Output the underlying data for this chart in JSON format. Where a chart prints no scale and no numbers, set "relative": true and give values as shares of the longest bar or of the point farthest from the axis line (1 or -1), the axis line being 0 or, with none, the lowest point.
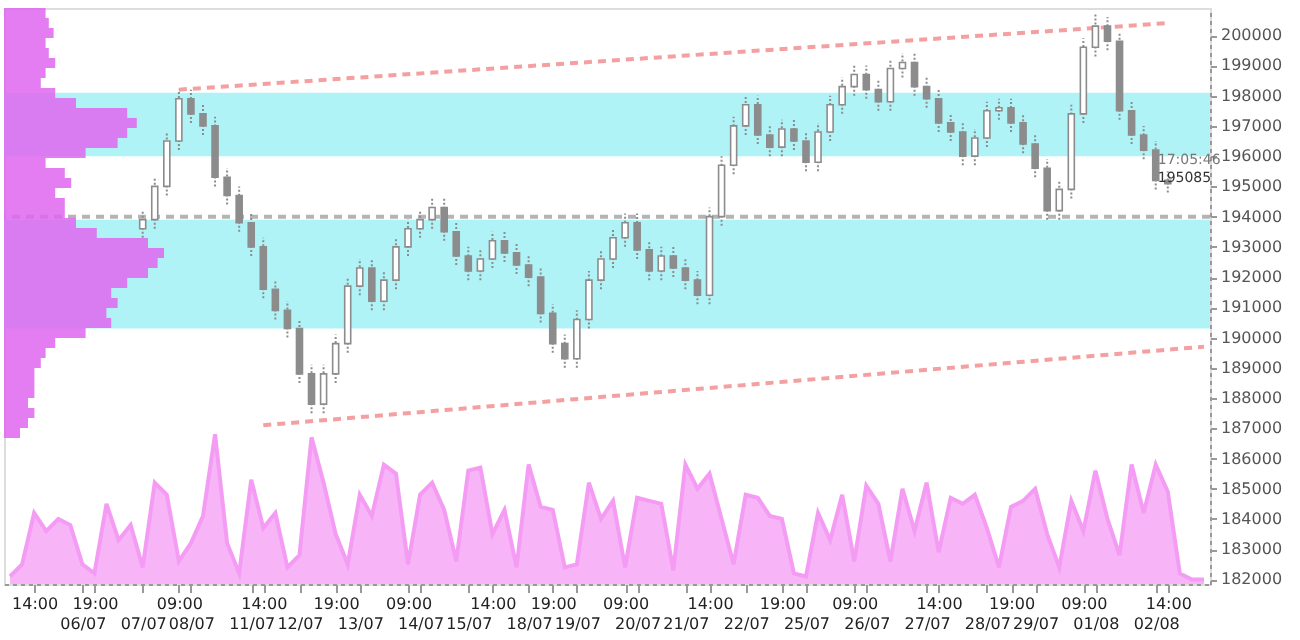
{
  "chart_data": [
    {
      "type": "candlestick",
      "categories": [
        null,
        null,
        "14:00",
        null,
        null,
        null,
        "06/07",
        "19:00",
        null,
        null,
        null,
        "07/07",
        null,
        null,
        "09:00",
        "08/07",
        null,
        null,
        null,
        null,
        "11/07",
        "14:00",
        null,
        null,
        "12/07",
        null,
        null,
        "19:00",
        null,
        "13/07",
        null,
        null,
        null,
        "09:00",
        "14/07",
        null,
        null,
        null,
        "15/07",
        null,
        "14:00",
        null,
        null,
        "18/07",
        null,
        "19:00",
        null,
        "19/07",
        null,
        null,
        null,
        "09:00",
        "20/07",
        null,
        null,
        null,
        "21/07",
        null,
        "14:00",
        null,
        null,
        "22/07",
        null,
        null,
        "19:00",
        null,
        "25/07",
        null,
        null,
        null,
        "09:00",
        "26/07",
        null,
        null,
        null,
        null,
        "27/07",
        "14:00",
        null,
        null,
        null,
        "28/07",
        null,
        "19:00",
        null,
        "29/07",
        null,
        null,
        null,
        "09:00",
        "01/08",
        null,
        null,
        null,
        null,
        "02/08",
        "14:00",
        null,
        null,
        null
      ],
      "ohlc": [
        null,
        null,
        null,
        null,
        null,
        null,
        null,
        null,
        null,
        null,
        null,
        [
          193600,
          194200,
          193300,
          193900
        ],
        [
          193900,
          195300,
          193600,
          195000
        ],
        [
          195000,
          196800,
          194700,
          196500
        ],
        [
          196500,
          198200,
          196200,
          197900
        ],
        [
          197900,
          198200,
          197100,
          197400
        ],
        [
          197400,
          197700,
          196700,
          197000
        ],
        [
          197000,
          197300,
          195000,
          195300
        ],
        [
          195300,
          195600,
          194400,
          194700
        ],
        [
          194700,
          195000,
          193500,
          193800
        ],
        [
          193800,
          194100,
          192700,
          193000
        ],
        [
          193000,
          193300,
          191300,
          191600
        ],
        [
          191600,
          191900,
          190600,
          190900
        ],
        [
          190900,
          191200,
          190000,
          190300
        ],
        [
          190300,
          190600,
          188500,
          188800
        ],
        [
          188800,
          189100,
          187500,
          187800
        ],
        [
          187800,
          189100,
          187500,
          188800
        ],
        [
          188800,
          190100,
          188500,
          189800
        ],
        [
          189800,
          192000,
          189500,
          191700
        ],
        [
          191700,
          192600,
          191400,
          192300
        ],
        [
          192300,
          192600,
          190900,
          191200
        ],
        [
          191200,
          192200,
          190900,
          191900
        ],
        [
          191900,
          193300,
          191600,
          193000
        ],
        [
          193000,
          193900,
          192700,
          193600
        ],
        [
          193600,
          194200,
          193300,
          193900
        ],
        [
          193900,
          194600,
          193600,
          194300
        ],
        [
          194300,
          194600,
          193200,
          193500
        ],
        [
          193500,
          193800,
          192400,
          192700
        ],
        [
          192700,
          193000,
          191900,
          192200
        ],
        [
          192200,
          192900,
          191900,
          192600
        ],
        [
          192600,
          193500,
          192300,
          193200
        ],
        [
          193200,
          193500,
          192500,
          192800
        ],
        [
          192800,
          193100,
          192100,
          192400
        ],
        [
          192400,
          192700,
          191700,
          192000
        ],
        [
          192000,
          192300,
          190500,
          190800
        ],
        [
          190800,
          191100,
          189500,
          189800
        ],
        [
          189800,
          190100,
          189000,
          189300
        ],
        [
          189300,
          190900,
          189000,
          190600
        ],
        [
          190600,
          192200,
          190300,
          191900
        ],
        [
          191900,
          192900,
          191600,
          192600
        ],
        [
          192600,
          193600,
          192300,
          193300
        ],
        [
          193300,
          194100,
          193000,
          193800
        ],
        [
          193800,
          194100,
          192600,
          192900
        ],
        [
          192900,
          193200,
          191900,
          192200
        ],
        [
          192200,
          193000,
          191900,
          192700
        ],
        [
          192700,
          193000,
          192000,
          192300
        ],
        [
          192300,
          192600,
          191600,
          191900
        ],
        [
          191900,
          192200,
          191100,
          191400
        ],
        [
          191400,
          194300,
          191100,
          194000
        ],
        [
          194000,
          196000,
          193700,
          195700
        ],
        [
          195700,
          197300,
          195400,
          197000
        ],
        [
          197000,
          198000,
          196700,
          197700
        ],
        [
          197700,
          198000,
          196400,
          196700
        ],
        [
          196700,
          197000,
          196000,
          196300
        ],
        [
          196300,
          197200,
          196000,
          196900
        ],
        [
          196900,
          197200,
          196200,
          196500
        ],
        [
          196500,
          196800,
          195500,
          195800
        ],
        [
          195800,
          197100,
          195500,
          196800
        ],
        [
          196800,
          198000,
          196500,
          197700
        ],
        [
          197700,
          198600,
          197400,
          198300
        ],
        [
          198300,
          199000,
          198000,
          198700
        ],
        [
          198700,
          199000,
          197900,
          198200
        ],
        [
          198200,
          198500,
          197500,
          197800
        ],
        [
          197800,
          199200,
          197500,
          198900
        ],
        [
          198900,
          199400,
          198600,
          199100
        ],
        [
          199100,
          199400,
          198000,
          198300
        ],
        [
          198300,
          198600,
          197600,
          197900
        ],
        [
          197900,
          198200,
          196800,
          197100
        ],
        [
          197100,
          197400,
          196500,
          196800
        ],
        [
          196800,
          197100,
          195700,
          196000
        ],
        [
          196000,
          196900,
          195700,
          196600
        ],
        [
          196600,
          197800,
          196300,
          197500
        ],
        [
          197500,
          197900,
          197200,
          197600
        ],
        [
          197600,
          197900,
          196800,
          197100
        ],
        [
          197100,
          197400,
          196100,
          196400
        ],
        [
          196400,
          196700,
          195300,
          195600
        ],
        [
          195600,
          195900,
          193900,
          194200
        ],
        [
          194200,
          195200,
          193900,
          194900
        ],
        [
          194900,
          197700,
          194600,
          197400
        ],
        [
          197400,
          199900,
          197100,
          199600
        ],
        [
          199600,
          200700,
          199300,
          200300
        ],
        [
          200300,
          200600,
          199500,
          199800
        ],
        [
          199800,
          200100,
          197200,
          197500
        ],
        [
          197500,
          197800,
          196400,
          196700
        ],
        [
          196700,
          197000,
          195900,
          196200
        ],
        [
          196200,
          196500,
          194900,
          195200
        ],
        [
          195200,
          195500,
          194800,
          195085
        ],
        null,
        null,
        null
      ],
      "color": "#8c8c8c",
      "series": [
        {
          "type": "area",
          "color": "#f49cf4",
          "values": [
            182100,
            182500,
            184200,
            183600,
            184000,
            183800,
            182500,
            182200,
            184500,
            183300,
            183800,
            182400,
            185200,
            184800,
            182600,
            183200,
            184100,
            186800,
            183200,
            182200,
            185300,
            183700,
            184200,
            182400,
            182800,
            186700,
            185200,
            183500,
            182500,
            184800,
            184100,
            185800,
            185500,
            182500,
            184800,
            185200,
            184300,
            182600,
            185600,
            185700,
            183500,
            184300,
            182400,
            185800,
            184400,
            184300,
            182400,
            182500,
            185200,
            184000,
            184600,
            182400,
            184700,
            184600,
            184500,
            182300,
            185800,
            185000,
            185500,
            184000,
            182500,
            184800,
            184700,
            184100,
            184000,
            182200,
            182100,
            184200,
            183300,
            184800,
            182600,
            185100,
            184500,
            182600,
            185000,
            183600,
            185200,
            182900,
            184700,
            184500,
            184800,
            183700,
            182400,
            184400,
            184600,
            185000,
            183500,
            182400,
            184600,
            183600,
            185600,
            184000,
            182800,
            185800,
            184200,
            185800,
            184900,
            182200,
            182000,
            182000
          ]
        },
        {
          "type": "line",
          "color": "#f4a0a0",
          "line_style": "dashed",
          "values": [
            null,
            null,
            null,
            null,
            null,
            null,
            null,
            null,
            null,
            null,
            null,
            null,
            null,
            null,
            198200,
            null,
            null,
            null,
            null,
            null,
            null,
            null,
            null,
            null,
            null,
            null,
            null,
            null,
            null,
            null,
            null,
            null,
            null,
            null,
            null,
            null,
            null,
            null,
            null,
            null,
            null,
            null,
            null,
            null,
            null,
            null,
            null,
            null,
            null,
            null,
            null,
            null,
            null,
            null,
            null,
            null,
            null,
            null,
            null,
            null,
            null,
            null,
            null,
            null,
            null,
            null,
            null,
            null,
            null,
            null,
            null,
            null,
            null,
            null,
            null,
            null,
            null,
            null,
            null,
            null,
            null,
            null,
            null,
            null,
            null,
            null,
            null,
            null,
            null,
            null,
            null,
            null,
            null,
            null,
            null,
            null,
            200400,
            null,
            null,
            null
          ]
        },
        {
          "type": "line",
          "color": "#f4a0a0",
          "line_style": "dashed",
          "values": [
            null,
            null,
            null,
            null,
            null,
            null,
            null,
            null,
            null,
            null,
            null,
            null,
            null,
            null,
            null,
            null,
            null,
            null,
            null,
            null,
            null,
            187100,
            null,
            null,
            null,
            null,
            null,
            null,
            null,
            null,
            null,
            null,
            null,
            null,
            null,
            null,
            null,
            null,
            null,
            null,
            null,
            null,
            null,
            null,
            null,
            null,
            null,
            null,
            null,
            null,
            null,
            null,
            null,
            null,
            null,
            null,
            null,
            null,
            null,
            null,
            null,
            null,
            null,
            null,
            null,
            null,
            null,
            null,
            null,
            null,
            null,
            null,
            null,
            null,
            null,
            null,
            null,
            null,
            null,
            null,
            null,
            null,
            null,
            null,
            null,
            null,
            null,
            null,
            null,
            null,
            null,
            null,
            null,
            null,
            null,
            null,
            null,
            null,
            null,
            189700
          ]
        }
      ],
      "bands": [
        {
          "axis": "y",
          "from": 196000,
          "to": 198100,
          "color": "#8eeef4"
        },
        {
          "axis": "y",
          "from": 190300,
          "to": 193900,
          "color": "#8eeef4"
        }
      ],
      "ref_lines": [
        {
          "axis": "y",
          "value": 194000,
          "color": "#b4b4b4",
          "line_style": "dashed"
        }
      ],
      "annotations": [
        {
          "text": "17:05:46",
          "x": "02/08",
          "y": 195085
        },
        {
          "text": "195085",
          "x": "02/08",
          "y": 195085
        }
      ],
      "ylim": [
        181850,
        200900
      ],
      "yticks": [
        182000,
        183000,
        184000,
        185000,
        186000,
        187000,
        188000,
        189000,
        190000,
        191000,
        192000,
        193000,
        194000,
        195000,
        196000,
        197000,
        198000,
        199000,
        200000
      ]
    },
    {
      "type": "bar",
      "orientation": "horizontal",
      "relative": true,
      "color": "#e066f0",
      "categories": [
        null,
        null,
        null,
        null,
        null,
        null,
        null,
        null,
        null,
        null,
        null,
        null,
        null,
        null,
        null,
        null,
        null,
        null,
        null,
        null,
        null,
        null,
        null,
        null,
        null,
        null,
        null,
        null,
        null,
        null,
        null,
        null,
        null,
        null,
        null,
        null,
        null,
        null,
        null,
        null,
        null,
        null,
        null
      ],
      "values": [
        0.26,
        0.28,
        0.31,
        0.26,
        0.28,
        0.32,
        0.26,
        0.23,
        0.32,
        0.45,
        0.77,
        0.83,
        0.77,
        0.71,
        0.51,
        0.26,
        0.38,
        0.42,
        0.32,
        0.38,
        0.38,
        0.45,
        0.58,
        0.9,
        1,
        0.96,
        0.9,
        0.77,
        0.67,
        0.71,
        0.64,
        0.67,
        0.51,
        0.32,
        0.26,
        0.23,
        0.19,
        0.19,
        0.19,
        0.15,
        0.19,
        0.15,
        0.1
      ]
    }
  ]
}
